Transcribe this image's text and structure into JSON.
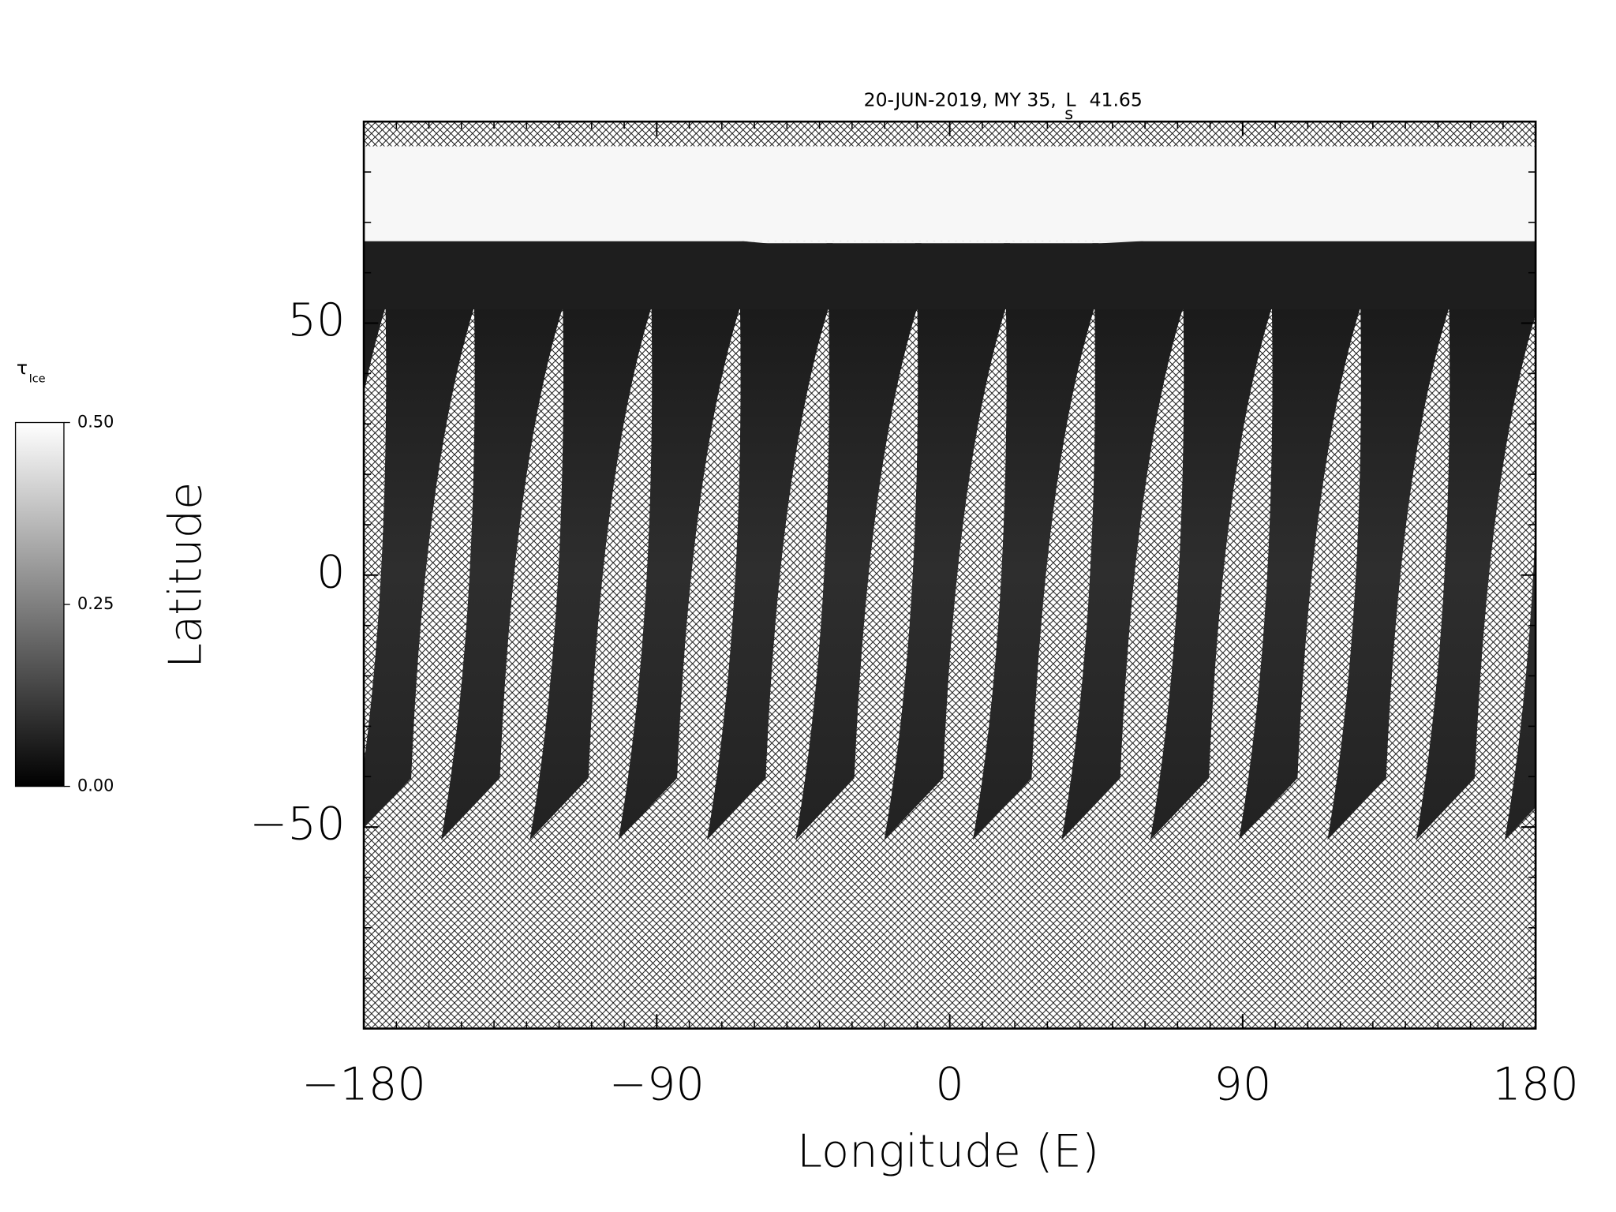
{
  "chart_data": {
    "type": "map",
    "title": {
      "text": "20-JUN-2019, MY 35,",
      "symbol": "L",
      "subscript": "s",
      "value": 41.65
    },
    "xlabel": "Longitude (E)",
    "ylabel": "Latitude",
    "xlim": [
      -180,
      180
    ],
    "ylim": [
      -90,
      90
    ],
    "xticks": [
      {
        "value": -180,
        "label": "−180"
      },
      {
        "value": -90,
        "label": "−90"
      },
      0,
      90,
      180
    ],
    "yticks": [
      {
        "value": -50,
        "label": "−50"
      },
      0,
      50
    ],
    "xminorticks": [
      -170,
      -160,
      -150,
      -140,
      -130,
      -120,
      -110,
      -100,
      -80,
      -70,
      -60,
      -50,
      -40,
      -30,
      -20,
      -10,
      10,
      20,
      30,
      40,
      50,
      60,
      70,
      80,
      100,
      110,
      120,
      130,
      140,
      150,
      160,
      170
    ],
    "yminorticks": [
      -80,
      -70,
      -60,
      -40,
      -30,
      -20,
      -10,
      10,
      20,
      30,
      40,
      60,
      70,
      80
    ],
    "colorbar": {
      "symbol": "τ",
      "subscript": "Ice",
      "clim": [
        0,
        0.5
      ],
      "ticks": [
        {
          "value": 0,
          "label": "0.00"
        },
        {
          "value": 0.25,
          "label": "0.25"
        },
        {
          "value": 0.5,
          "label": "0.50"
        }
      ],
      "colors": [
        "#000000",
        "#ffffff"
      ]
    }
  }
}
